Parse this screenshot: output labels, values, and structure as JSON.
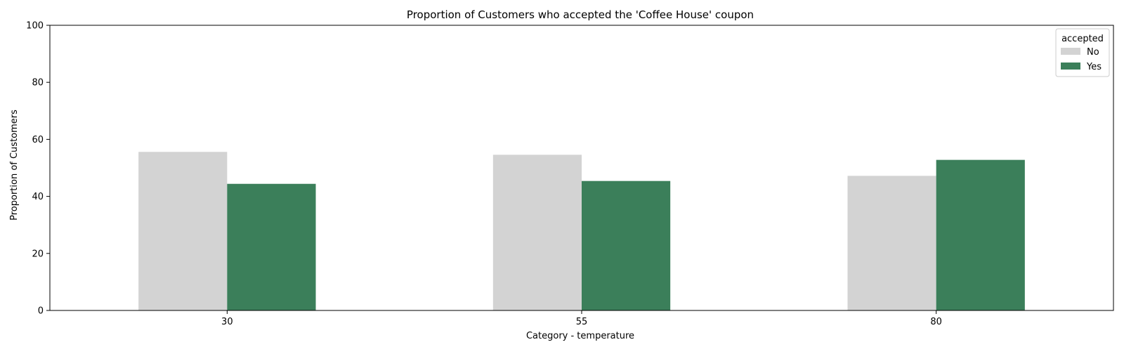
{
  "chart_data": {
    "type": "bar",
    "title": "Proportion of Customers who accepted the 'Coffee House' coupon",
    "xlabel": "Category - temperature",
    "ylabel": "Proportion of Customers",
    "categories": [
      "30",
      "55",
      "80"
    ],
    "ylim": [
      0,
      100
    ],
    "yticks": [
      0,
      20,
      40,
      60,
      80,
      100
    ],
    "grid": false,
    "legend": {
      "title": "accepted",
      "placement": "top-right"
    },
    "series": [
      {
        "name": "No",
        "color": "#d3d3d3",
        "values": [
          55.6,
          54.6,
          47.2
        ]
      },
      {
        "name": "Yes",
        "color": "#3b7f5a",
        "values": [
          44.4,
          45.4,
          52.8
        ]
      }
    ]
  }
}
